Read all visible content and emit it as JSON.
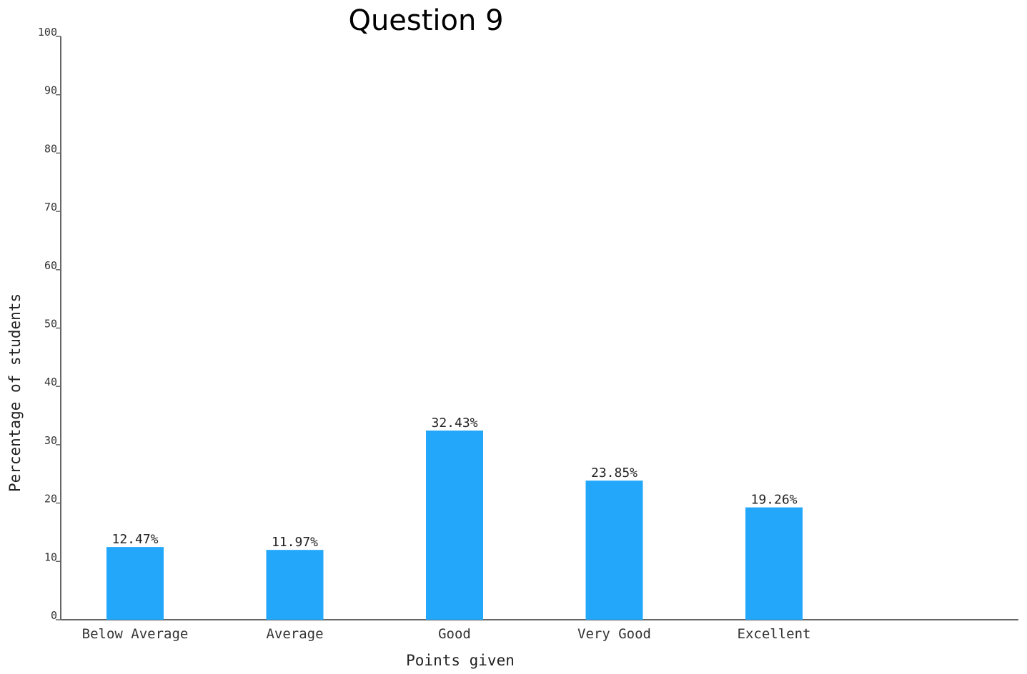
{
  "chart_data": {
    "type": "bar",
    "title": "Question 9",
    "xlabel": "Points given",
    "ylabel": "Percentage of students",
    "categories": [
      "Below Average",
      "Average",
      "Good",
      "Very Good",
      "Excellent"
    ],
    "values": [
      12.47,
      11.97,
      32.43,
      23.85,
      19.26
    ],
    "value_labels": [
      "12.47%",
      "11.97%",
      "32.43%",
      "23.85%",
      "19.26%"
    ],
    "ylim": [
      0,
      100
    ],
    "yticks": [
      0,
      10,
      20,
      30,
      40,
      50,
      60,
      70,
      80,
      90,
      100
    ],
    "grid": false,
    "bar_color": "#23a7fb"
  }
}
